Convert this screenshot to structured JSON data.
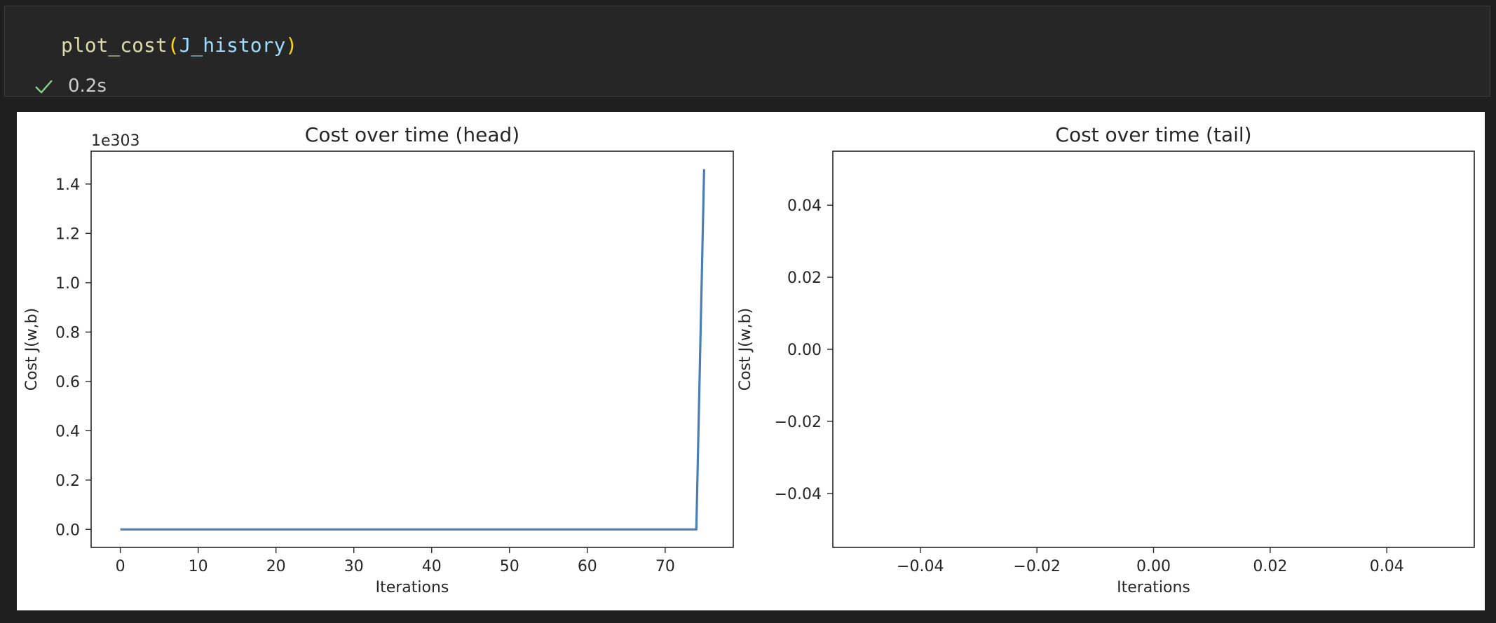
{
  "cell": {
    "code": {
      "function": "plot_cost",
      "open_paren": "(",
      "argument": "J_history",
      "close_paren": ")"
    },
    "status_icon": "checkmark-icon",
    "status_color": "#89d185",
    "exec_time": "0.2s"
  },
  "colors": {
    "line": "#4a7fb5",
    "background": "#1f1f1f",
    "cell_background": "#262626"
  },
  "chart_data": [
    {
      "type": "line",
      "title": "Cost over time (head)",
      "xlabel": "Iterations",
      "ylabel": "Cost J(w,b)",
      "offset_label": "1e303",
      "xlim": [
        -3.75,
        78.75
      ],
      "ylim": [
        -0.073,
        1.533
      ],
      "xticks": [
        0,
        10,
        20,
        30,
        40,
        50,
        60,
        70
      ],
      "xtick_labels": [
        "0",
        "10",
        "20",
        "30",
        "40",
        "50",
        "60",
        "70"
      ],
      "yticks": [
        0.0,
        0.2,
        0.4,
        0.6,
        0.8,
        1.0,
        1.2,
        1.4
      ],
      "ytick_labels": [
        "0.0",
        "0.2",
        "0.4",
        "0.6",
        "0.8",
        "1.0",
        "1.2",
        "1.4"
      ],
      "series": [
        {
          "x": [
            0,
            10,
            20,
            30,
            40,
            50,
            60,
            70,
            74,
            75
          ],
          "y": [
            0,
            0,
            0,
            0,
            0,
            0,
            0,
            0,
            0,
            1.46
          ]
        }
      ],
      "grid": false
    },
    {
      "type": "line",
      "title": "Cost over time (tail)",
      "xlabel": "Iterations",
      "ylabel": "Cost J(w,b)",
      "xlim": [
        -0.055,
        0.055
      ],
      "ylim": [
        -0.055,
        0.055
      ],
      "xticks": [
        -0.04,
        -0.02,
        0.0,
        0.02,
        0.04
      ],
      "xtick_labels": [
        "−0.04",
        "−0.02",
        "0.00",
        "0.02",
        "0.04"
      ],
      "yticks": [
        0.04,
        0.02,
        0.0,
        -0.02,
        -0.04
      ],
      "ytick_labels": [
        "0.04",
        "0.02",
        "0.00",
        "−0.02",
        "−0.04"
      ],
      "series": [],
      "grid": false
    }
  ]
}
